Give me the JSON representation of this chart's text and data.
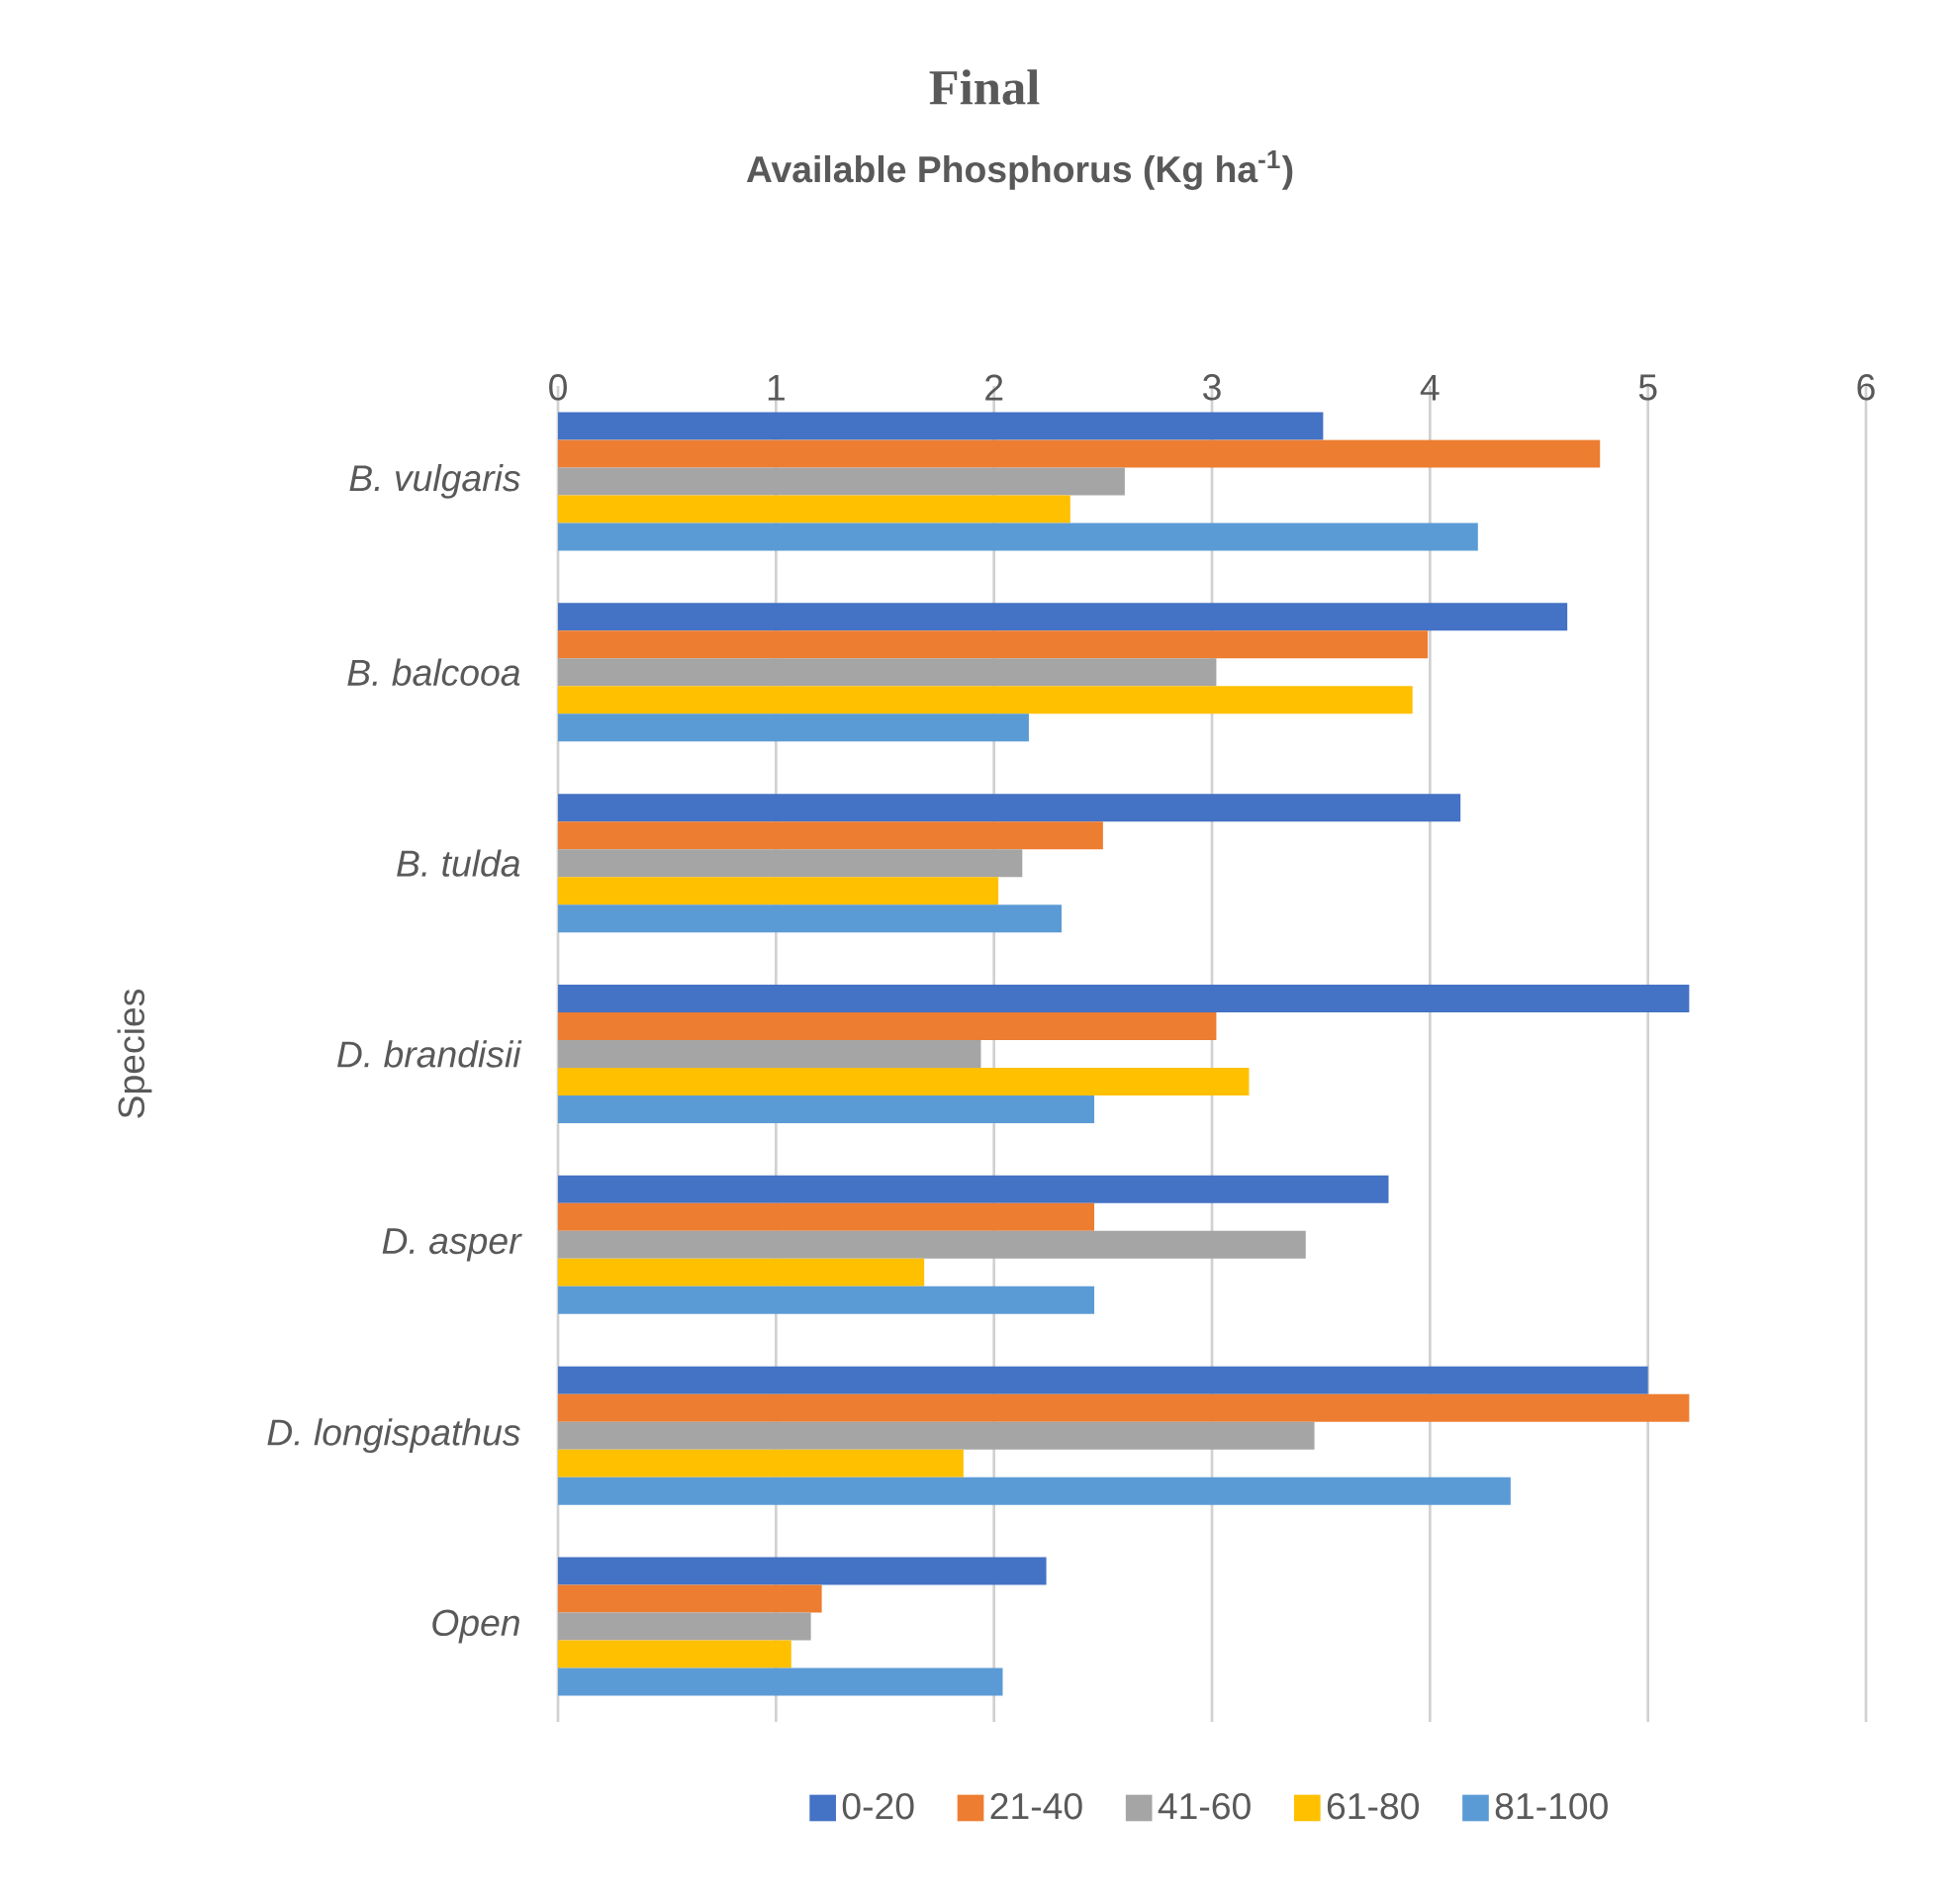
{
  "chart_data": {
    "type": "bar",
    "orientation": "horizontal",
    "title": "Final",
    "xlabel": "Available Phosphorus (Kg ha$^{-1}$)",
    "ylabel": "Species",
    "categories": [
      "B. vulgaris",
      "B. balcooa",
      "B. tulda",
      "D. brandisii",
      "D. asper",
      "D. longispathus",
      "Open"
    ],
    "series": [
      {
        "name": "0-20",
        "color": "#4472c4",
        "values": [
          3.51,
          4.63,
          4.14,
          5.19,
          3.81,
          5.0,
          2.24
        ]
      },
      {
        "name": "21-40",
        "color": "#ed7d31",
        "values": [
          4.78,
          3.99,
          2.5,
          3.02,
          2.46,
          5.19,
          1.21
        ]
      },
      {
        "name": "41-60",
        "color": "#a5a5a5",
        "values": [
          2.6,
          3.02,
          2.13,
          1.94,
          3.43,
          3.47,
          1.16
        ]
      },
      {
        "name": "61-80",
        "color": "#ffc000",
        "values": [
          2.35,
          3.92,
          2.02,
          3.17,
          1.68,
          1.86,
          1.07
        ]
      },
      {
        "name": "81-100",
        "color": "#5b9bd5",
        "values": [
          4.22,
          2.16,
          2.31,
          2.46,
          2.46,
          4.37,
          2.04
        ]
      }
    ],
    "xlim": [
      0,
      6
    ],
    "xticks": [
      0,
      1,
      2,
      3,
      4,
      5,
      6
    ],
    "grid": "x",
    "legend": "bottom"
  }
}
